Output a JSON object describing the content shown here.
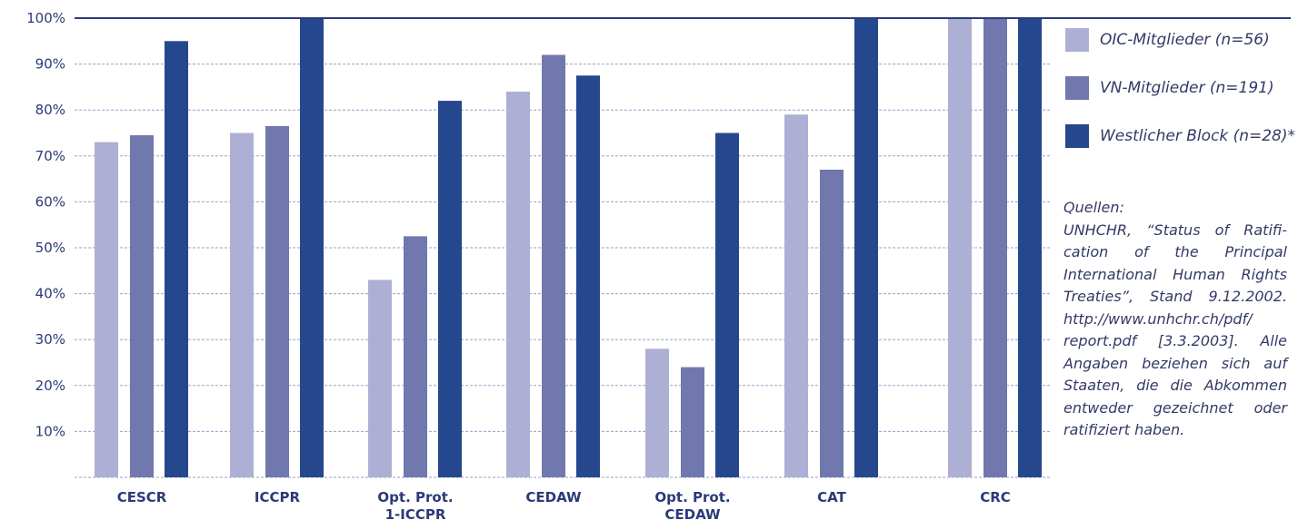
{
  "chart_data": {
    "type": "bar",
    "categories": [
      [
        "CESCR"
      ],
      [
        "ICCPR"
      ],
      [
        "Opt. Prot.",
        "1-ICCPR"
      ],
      [
        "CEDAW"
      ],
      [
        "Opt. Prot.",
        "CEDAW"
      ],
      [
        "CAT"
      ],
      [
        "CRC"
      ]
    ],
    "series": [
      {
        "name": "OIC-Mitglieder (n=56)",
        "color": "#adb0d4",
        "values": [
          73,
          75,
          43,
          84,
          28,
          79,
          100
        ]
      },
      {
        "name": "VN-Mitglieder (n=191)",
        "color": "#7178ad",
        "values": [
          74.5,
          76.5,
          52.5,
          92,
          24,
          67,
          100
        ]
      },
      {
        "name": "Westlicher Block (n=28)*",
        "color": "#25478e",
        "values": [
          95,
          100,
          82,
          87.5,
          75,
          100,
          100
        ]
      }
    ],
    "yticks": [
      "10%",
      "20%",
      "30%",
      "40%",
      "50%",
      "60%",
      "70%",
      "80%",
      "90%",
      "100%"
    ],
    "ylim": [
      0,
      100
    ],
    "grid": true,
    "legend_position": "right"
  },
  "sources": {
    "heading": "Quellen:",
    "text": "UNHCHR, “Status of Ratifi-cation of the Principal International Human Rights Treaties”, Stand 9.12.2002. http://www.unhchr.ch/pdf/ report.pdf [3.3.2003]. Alle Angaben beziehen sich auf Staaten, die die Abkommen entweder gezeichnet oder ratifiziert haben."
  }
}
